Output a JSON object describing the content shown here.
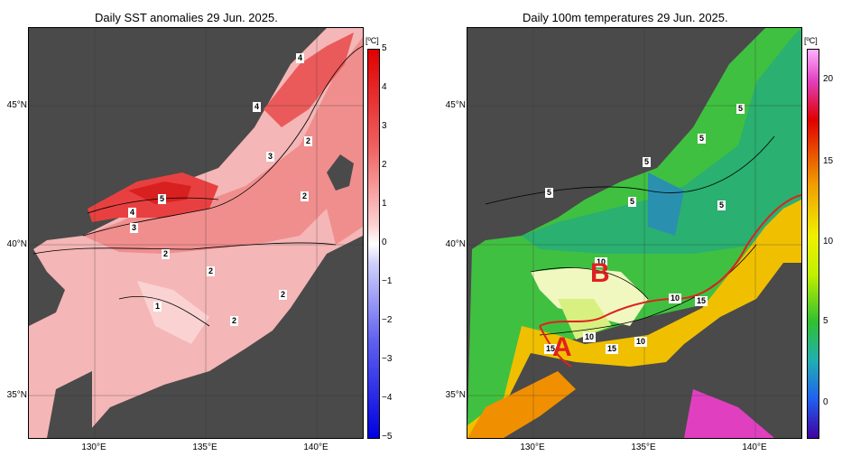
{
  "left_panel": {
    "title": "Daily SST anomalies 29 Jun. 2025.",
    "unit": "[ºC]",
    "colorbar_ticks": [
      "5",
      "4",
      "3",
      "2",
      "1",
      "0",
      "−1",
      "−2",
      "−3",
      "−4",
      "−5"
    ],
    "contour_labels": [
      "4",
      "4",
      "2",
      "3",
      "5",
      "2",
      "4",
      "3",
      "2",
      "2",
      "2",
      "1",
      "2"
    ]
  },
  "right_panel": {
    "title": "Daily 100m temperatures 29 Jun. 2025.",
    "unit": "[ºC]",
    "colorbar_ticks": [
      "20",
      "15",
      "10",
      "5",
      "0"
    ],
    "contour_labels": [
      "5",
      "5",
      "5",
      "5",
      "5",
      "5",
      "10",
      "10",
      "15",
      "15",
      "15",
      "10",
      "10"
    ],
    "region_labels": [
      "A",
      "B"
    ]
  },
  "axes": {
    "lat_labels": [
      "45°N",
      "40°N",
      "35°N"
    ],
    "lon_labels": [
      "130°E",
      "135°E",
      "140°E"
    ]
  },
  "colors": {
    "land": "#4a4a4a",
    "shelf": "#c8c8c8",
    "accent_red": "#e02020"
  }
}
